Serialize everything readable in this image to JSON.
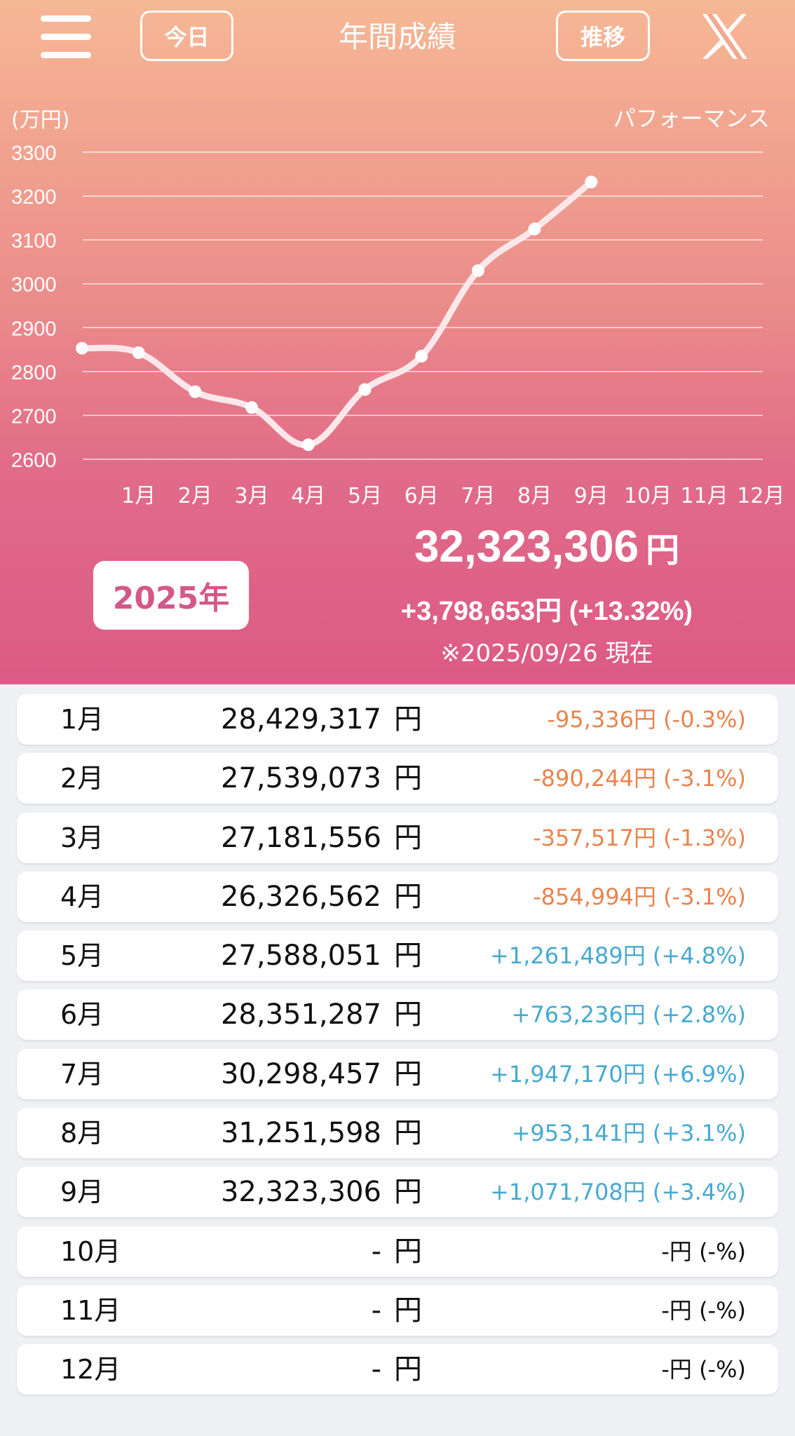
{
  "header": {
    "today_label": "今日",
    "title": "年間成績",
    "trend_label": "推移",
    "menu_icon": "hamburger-menu-icon",
    "share_icon": "x-logo-icon"
  },
  "chart_data": {
    "type": "line",
    "unit_label": "(万円)",
    "legend": "パフォーマンス",
    "categories": [
      "",
      "1月",
      "2月",
      "3月",
      "4月",
      "5月",
      "6月",
      "7月",
      "8月",
      "9月",
      "10月",
      "11月",
      "12月"
    ],
    "values": [
      2853,
      2843,
      2754,
      2718,
      2633,
      2759,
      2835,
      3030,
      3125,
      3232,
      null,
      null,
      null
    ],
    "yticks": [
      2600,
      2700,
      2800,
      2900,
      3000,
      3100,
      3200,
      3300
    ],
    "ylim": [
      2600,
      3300
    ],
    "line_color": "#fde7ea",
    "grid": true
  },
  "summary": {
    "year_label": "2025年",
    "total": "32,323,306",
    "yen": "円",
    "change": "+3,798,653円 (+13.32%)",
    "as_of": "※2025/09/26 現在"
  },
  "colors": {
    "negative": "#e8844e",
    "positive": "#46a9d2",
    "accent": "#d3588a"
  },
  "months": [
    {
      "month": "1月",
      "value": "28,429,317",
      "yen": "円",
      "diff": "-95,336円 (-0.3%)",
      "sign": "neg"
    },
    {
      "month": "2月",
      "value": "27,539,073",
      "yen": "円",
      "diff": "-890,244円 (-3.1%)",
      "sign": "neg"
    },
    {
      "month": "3月",
      "value": "27,181,556",
      "yen": "円",
      "diff": "-357,517円 (-1.3%)",
      "sign": "neg"
    },
    {
      "month": "4月",
      "value": "26,326,562",
      "yen": "円",
      "diff": "-854,994円 (-3.1%)",
      "sign": "neg"
    },
    {
      "month": "5月",
      "value": "27,588,051",
      "yen": "円",
      "diff": "+1,261,489円 (+4.8%)",
      "sign": "pos"
    },
    {
      "month": "6月",
      "value": "28,351,287",
      "yen": "円",
      "diff": "+763,236円 (+2.8%)",
      "sign": "pos"
    },
    {
      "month": "7月",
      "value": "30,298,457",
      "yen": "円",
      "diff": "+1,947,170円 (+6.9%)",
      "sign": "pos"
    },
    {
      "month": "8月",
      "value": "31,251,598",
      "yen": "円",
      "diff": "+953,141円 (+3.1%)",
      "sign": "pos"
    },
    {
      "month": "9月",
      "value": "32,323,306",
      "yen": "円",
      "diff": "+1,071,708円 (+3.4%)",
      "sign": "pos"
    },
    {
      "month": "10月",
      "value": "-",
      "yen": "円",
      "diff": "-円 (-%)",
      "sign": "none"
    },
    {
      "month": "11月",
      "value": "-",
      "yen": "円",
      "diff": "-円 (-%)",
      "sign": "none"
    },
    {
      "month": "12月",
      "value": "-",
      "yen": "円",
      "diff": "-円 (-%)",
      "sign": "none"
    }
  ]
}
